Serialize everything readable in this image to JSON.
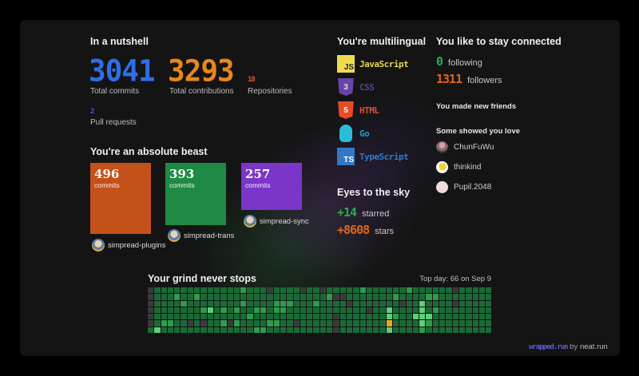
{
  "nutshell": {
    "title": "In a nutshell",
    "total_commits": {
      "value": "3041",
      "label": "Total commits",
      "color": "#2f6ee8"
    },
    "total_contributions": {
      "value": "3293",
      "label": "Total contributions",
      "color": "#e8871c"
    },
    "repositories": {
      "value": "18",
      "label": "Repositories",
      "color": "#e0542a"
    },
    "pull_requests": {
      "value": "2",
      "label": "Pull requests",
      "color": "#5a4fdc"
    }
  },
  "beast": {
    "title": "You're an absolute beast",
    "repos": [
      {
        "commits": "496",
        "unit": "commits",
        "name": "simpread-plugins",
        "color": "#c4501a"
      },
      {
        "commits": "393",
        "unit": "commits",
        "name": "simpread-trans",
        "color": "#1e8a43"
      },
      {
        "commits": "257",
        "unit": "commits",
        "name": "simpread-sync",
        "color": "#7b35c9"
      }
    ]
  },
  "languages": {
    "title": "You're multilingual",
    "items": [
      {
        "name": "JavaScript",
        "icon": "javascript-icon",
        "badge": "JS",
        "color": "#e8d44d"
      },
      {
        "name": "CSS",
        "icon": "css3-icon",
        "badge": "3",
        "color": "#5b4390"
      },
      {
        "name": "HTML",
        "icon": "html5-icon",
        "badge": "5",
        "color": "#e44d26"
      },
      {
        "name": "Go",
        "icon": "go-gopher-icon",
        "badge": "",
        "color": "#1e9bd0"
      },
      {
        "name": "TypeScript",
        "icon": "typescript-icon",
        "badge": "TS",
        "color": "#3178c6"
      }
    ]
  },
  "sky": {
    "title": "Eyes to the sky",
    "starred": {
      "value": "+14",
      "label": "starred",
      "color": "#2eaa4f"
    },
    "stars": {
      "value": "+8608",
      "label": "stars",
      "color": "#e0661c"
    }
  },
  "connected": {
    "title": "You like to stay connected",
    "following": {
      "value": "0",
      "label": "following",
      "color": "#2eaa4f"
    },
    "followers": {
      "value": "1311",
      "label": "followers",
      "color": "#e0661c"
    },
    "friends_title": "You made new friends",
    "love_title": "Some showed you love",
    "users": [
      {
        "name": "ChunFuWu",
        "avatar_color": "#8a6a70"
      },
      {
        "name": "thinkind",
        "avatar_color": "#f0d040"
      },
      {
        "name": "Pupil.2048",
        "avatar_color": "#f0dada"
      }
    ]
  },
  "grind": {
    "title": "Your grind never stops",
    "top_day": "Top day: 66 on Sep 9",
    "heatmap": {
      "weeks": 52,
      "days": 7,
      "default_level": 1,
      "level_colors": {
        "0": "#3a3a3a",
        "1": "#1b6a36",
        "2": "#2d9c4c",
        "3": "#5dcf78",
        "o": "#e8a91d"
      },
      "overrides": [
        [
          0,
          0,
          "0"
        ],
        [
          0,
          14,
          "2"
        ],
        [
          0,
          18,
          "0"
        ],
        [
          0,
          23,
          "0"
        ],
        [
          0,
          26,
          "0"
        ],
        [
          0,
          32,
          "2"
        ],
        [
          0,
          39,
          "2"
        ],
        [
          0,
          46,
          "0"
        ],
        [
          1,
          0,
          "0"
        ],
        [
          1,
          4,
          "2"
        ],
        [
          1,
          7,
          "2"
        ],
        [
          1,
          27,
          "2"
        ],
        [
          1,
          28,
          "0"
        ],
        [
          1,
          29,
          "0"
        ],
        [
          1,
          37,
          "2"
        ],
        [
          1,
          42,
          "2"
        ],
        [
          1,
          43,
          "2"
        ],
        [
          2,
          0,
          "0"
        ],
        [
          2,
          5,
          "2"
        ],
        [
          2,
          14,
          "2"
        ],
        [
          2,
          19,
          "2"
        ],
        [
          2,
          20,
          "2"
        ],
        [
          2,
          21,
          "2"
        ],
        [
          2,
          25,
          "2"
        ],
        [
          2,
          30,
          "0"
        ],
        [
          2,
          38,
          "0"
        ],
        [
          2,
          41,
          "3"
        ],
        [
          2,
          46,
          "0"
        ],
        [
          3,
          0,
          "0"
        ],
        [
          3,
          8,
          "2"
        ],
        [
          3,
          9,
          "3"
        ],
        [
          3,
          11,
          "2"
        ],
        [
          3,
          13,
          "2"
        ],
        [
          3,
          16,
          "2"
        ],
        [
          3,
          17,
          "2"
        ],
        [
          3,
          19,
          "2"
        ],
        [
          3,
          20,
          "2"
        ],
        [
          3,
          33,
          "0"
        ],
        [
          3,
          36,
          "3"
        ],
        [
          3,
          41,
          "3"
        ],
        [
          3,
          43,
          "2"
        ],
        [
          4,
          0,
          "0"
        ],
        [
          4,
          15,
          "2"
        ],
        [
          4,
          28,
          "0"
        ],
        [
          4,
          36,
          "3"
        ],
        [
          4,
          37,
          "2"
        ],
        [
          4,
          40,
          "3"
        ],
        [
          4,
          41,
          "3"
        ],
        [
          4,
          42,
          "3"
        ],
        [
          5,
          0,
          "0"
        ],
        [
          5,
          2,
          "2"
        ],
        [
          5,
          3,
          "2"
        ],
        [
          5,
          6,
          "0"
        ],
        [
          5,
          8,
          "0"
        ],
        [
          5,
          11,
          "2"
        ],
        [
          5,
          12,
          "0"
        ],
        [
          5,
          13,
          "2"
        ],
        [
          5,
          18,
          "2"
        ],
        [
          5,
          19,
          "2"
        ],
        [
          5,
          22,
          "0"
        ],
        [
          5,
          28,
          "0"
        ],
        [
          5,
          36,
          "o"
        ],
        [
          5,
          41,
          "3"
        ],
        [
          5,
          42,
          "2"
        ],
        [
          6,
          1,
          "3"
        ],
        [
          6,
          16,
          "2"
        ],
        [
          6,
          17,
          "2"
        ],
        [
          6,
          28,
          "0"
        ],
        [
          6,
          36,
          "3"
        ],
        [
          6,
          41,
          "2"
        ]
      ]
    }
  },
  "footer": {
    "brand": "wrapped.run",
    "by": "by",
    "author": "neat.run",
    "brand_color": "#5b5bd6"
  }
}
